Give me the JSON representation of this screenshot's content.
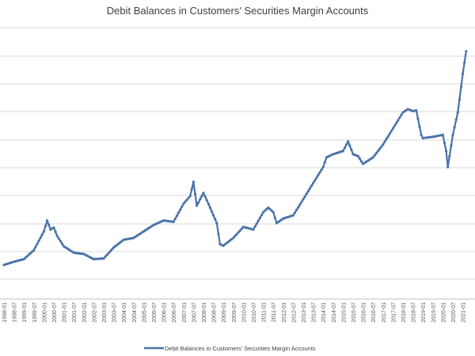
{
  "chart_data": {
    "type": "line",
    "title": "Debit Balances in Customers' Securities Margin Accounts",
    "xlabel": "",
    "ylabel": "",
    "x_ticks": [
      "1998-01",
      "1998-07",
      "1999-01",
      "1999-07",
      "2000-01",
      "2000-07",
      "2001-01",
      "2001-07",
      "2002-01",
      "2002-07",
      "2003-01",
      "2003-07",
      "2004-01",
      "2004-07",
      "2005-01",
      "2005-07",
      "2006-01",
      "2006-07",
      "2007-01",
      "2007-07",
      "2008-01",
      "2008-07",
      "2009-01",
      "2009-07",
      "2010-01",
      "2010-07",
      "2011-01",
      "2011-07",
      "2012-01",
      "2012-07",
      "2013-01",
      "2013-07",
      "2014-01",
      "2014-07",
      "2015-01",
      "2015-07",
      "2016-01",
      "2016-07",
      "2017-01",
      "2017-07",
      "2018-01",
      "2018-07",
      "2019-01",
      "2019-07",
      "2020-01",
      "2020-07",
      "2021-01"
    ],
    "grid": true,
    "legend_position": "bottom",
    "colors": {
      "line": "#4a73a8",
      "grid": "#d9d9d9"
    },
    "series": [
      {
        "name": "Debit Balances in Customers' Securities Margin Accounts",
        "points": [
          [
            "1998-01",
            0.53
          ],
          [
            "1998-07",
            0.58
          ],
          [
            "1999-01",
            0.62
          ],
          [
            "1999-07",
            0.76
          ],
          [
            "2000-01",
            1.05
          ],
          [
            "2000-03",
            1.22
          ],
          [
            "2000-05",
            1.08
          ],
          [
            "2000-07",
            1.11
          ],
          [
            "2000-09",
            0.98
          ],
          [
            "2001-01",
            0.82
          ],
          [
            "2001-07",
            0.72
          ],
          [
            "2002-01",
            0.7
          ],
          [
            "2002-07",
            0.62
          ],
          [
            "2003-01",
            0.63
          ],
          [
            "2003-07",
            0.8
          ],
          [
            "2004-01",
            0.92
          ],
          [
            "2004-07",
            0.95
          ],
          [
            "2005-01",
            1.05
          ],
          [
            "2005-07",
            1.15
          ],
          [
            "2006-01",
            1.22
          ],
          [
            "2006-07",
            1.2
          ],
          [
            "2007-01",
            1.48
          ],
          [
            "2007-05",
            1.6
          ],
          [
            "2007-07",
            1.82
          ],
          [
            "2007-09",
            1.45
          ],
          [
            "2008-01",
            1.65
          ],
          [
            "2008-04",
            1.48
          ],
          [
            "2008-07",
            1.3
          ],
          [
            "2008-09",
            1.18
          ],
          [
            "2008-11",
            0.85
          ],
          [
            "2009-01",
            0.83
          ],
          [
            "2009-07",
            0.95
          ],
          [
            "2010-01",
            1.12
          ],
          [
            "2010-07",
            1.08
          ],
          [
            "2011-01",
            1.35
          ],
          [
            "2011-04",
            1.42
          ],
          [
            "2011-07",
            1.35
          ],
          [
            "2011-09",
            1.18
          ],
          [
            "2012-01",
            1.25
          ],
          [
            "2012-07",
            1.3
          ],
          [
            "2013-01",
            1.55
          ],
          [
            "2013-07",
            1.8
          ],
          [
            "2014-01",
            2.05
          ],
          [
            "2014-03",
            2.2
          ],
          [
            "2014-07",
            2.25
          ],
          [
            "2015-01",
            2.3
          ],
          [
            "2015-04",
            2.45
          ],
          [
            "2015-07",
            2.25
          ],
          [
            "2015-10",
            2.22
          ],
          [
            "2016-01",
            2.1
          ],
          [
            "2016-07",
            2.2
          ],
          [
            "2017-01",
            2.4
          ],
          [
            "2017-07",
            2.65
          ],
          [
            "2018-01",
            2.9
          ],
          [
            "2018-04",
            2.95
          ],
          [
            "2018-07",
            2.92
          ],
          [
            "2018-09",
            2.93
          ],
          [
            "2018-12",
            2.55
          ],
          [
            "2019-01",
            2.5
          ],
          [
            "2019-07",
            2.52
          ],
          [
            "2020-01",
            2.55
          ],
          [
            "2020-03",
            2.3
          ],
          [
            "2020-04",
            2.05
          ],
          [
            "2020-07",
            2.55
          ],
          [
            "2020-10",
            2.9
          ],
          [
            "2021-01",
            3.5
          ],
          [
            "2021-03",
            3.85
          ]
        ]
      }
    ],
    "ylim": [
      0,
      4.4
    ]
  }
}
